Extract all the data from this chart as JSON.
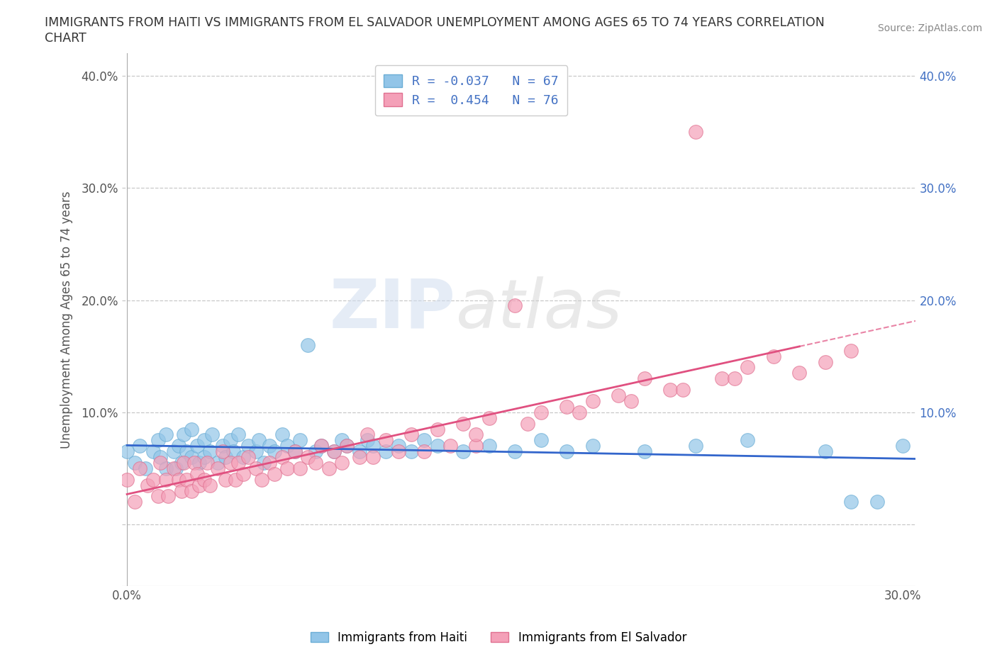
{
  "title_line1": "IMMIGRANTS FROM HAITI VS IMMIGRANTS FROM EL SALVADOR UNEMPLOYMENT AMONG AGES 65 TO 74 YEARS CORRELATION",
  "title_line2": "CHART",
  "source": "Source: ZipAtlas.com",
  "ylabel": "Unemployment Among Ages 65 to 74 years",
  "xlim": [
    -0.002,
    0.305
  ],
  "ylim": [
    -0.055,
    0.42
  ],
  "haiti_color": "#92C5E8",
  "haiti_edge_color": "#6AADD5",
  "el_salvador_color": "#F4A0B8",
  "el_salvador_edge_color": "#E07090",
  "haiti_R": -0.037,
  "haiti_N": 67,
  "el_salvador_R": 0.454,
  "el_salvador_N": 76,
  "haiti_trend_color": "#3366CC",
  "el_salvador_trend_color": "#E05080",
  "watermark_zip": "ZIP",
  "watermark_atlas": "atlas",
  "background_color": "#ffffff",
  "grid_color": "#c8c8c8",
  "legend_text_color": "#4472C4",
  "right_axis_color": "#4472C4",
  "haiti_x": [
    0.0,
    0.003,
    0.005,
    0.007,
    0.01,
    0.012,
    0.013,
    0.015,
    0.015,
    0.018,
    0.019,
    0.02,
    0.021,
    0.022,
    0.023,
    0.025,
    0.025,
    0.027,
    0.028,
    0.03,
    0.03,
    0.032,
    0.033,
    0.035,
    0.037,
    0.038,
    0.04,
    0.041,
    0.043,
    0.045,
    0.047,
    0.05,
    0.051,
    0.053,
    0.055,
    0.057,
    0.06,
    0.062,
    0.065,
    0.067,
    0.07,
    0.073,
    0.075,
    0.08,
    0.083,
    0.085,
    0.09,
    0.093,
    0.095,
    0.1,
    0.105,
    0.11,
    0.115,
    0.12,
    0.13,
    0.14,
    0.15,
    0.16,
    0.17,
    0.18,
    0.2,
    0.22,
    0.24,
    0.27,
    0.28,
    0.29,
    0.3
  ],
  "haiti_y": [
    0.065,
    0.055,
    0.07,
    0.05,
    0.065,
    0.075,
    0.06,
    0.08,
    0.05,
    0.065,
    0.05,
    0.07,
    0.055,
    0.08,
    0.065,
    0.06,
    0.085,
    0.07,
    0.055,
    0.075,
    0.06,
    0.065,
    0.08,
    0.055,
    0.07,
    0.06,
    0.075,
    0.065,
    0.08,
    0.06,
    0.07,
    0.065,
    0.075,
    0.055,
    0.07,
    0.065,
    0.08,
    0.07,
    0.065,
    0.075,
    0.16,
    0.065,
    0.07,
    0.065,
    0.075,
    0.07,
    0.065,
    0.075,
    0.07,
    0.065,
    0.07,
    0.065,
    0.075,
    0.07,
    0.065,
    0.07,
    0.065,
    0.075,
    0.065,
    0.07,
    0.065,
    0.07,
    0.075,
    0.065,
    0.02,
    0.02,
    0.07
  ],
  "el_salvador_x": [
    0.0,
    0.003,
    0.005,
    0.008,
    0.01,
    0.012,
    0.013,
    0.015,
    0.016,
    0.018,
    0.02,
    0.021,
    0.022,
    0.023,
    0.025,
    0.026,
    0.027,
    0.028,
    0.03,
    0.031,
    0.032,
    0.035,
    0.037,
    0.038,
    0.04,
    0.042,
    0.043,
    0.045,
    0.047,
    0.05,
    0.052,
    0.055,
    0.057,
    0.06,
    0.062,
    0.065,
    0.067,
    0.07,
    0.073,
    0.075,
    0.078,
    0.08,
    0.083,
    0.085,
    0.09,
    0.093,
    0.095,
    0.1,
    0.105,
    0.11,
    0.115,
    0.12,
    0.125,
    0.13,
    0.135,
    0.14,
    0.15,
    0.16,
    0.17,
    0.18,
    0.19,
    0.2,
    0.21,
    0.22,
    0.23,
    0.24,
    0.25,
    0.26,
    0.27,
    0.28,
    0.135,
    0.155,
    0.175,
    0.195,
    0.215,
    0.235
  ],
  "el_salvador_y": [
    0.04,
    0.02,
    0.05,
    0.035,
    0.04,
    0.025,
    0.055,
    0.04,
    0.025,
    0.05,
    0.04,
    0.03,
    0.055,
    0.04,
    0.03,
    0.055,
    0.045,
    0.035,
    0.04,
    0.055,
    0.035,
    0.05,
    0.065,
    0.04,
    0.055,
    0.04,
    0.055,
    0.045,
    0.06,
    0.05,
    0.04,
    0.055,
    0.045,
    0.06,
    0.05,
    0.065,
    0.05,
    0.06,
    0.055,
    0.07,
    0.05,
    0.065,
    0.055,
    0.07,
    0.06,
    0.08,
    0.06,
    0.075,
    0.065,
    0.08,
    0.065,
    0.085,
    0.07,
    0.09,
    0.07,
    0.095,
    0.195,
    0.1,
    0.105,
    0.11,
    0.115,
    0.13,
    0.12,
    0.35,
    0.13,
    0.14,
    0.15,
    0.135,
    0.145,
    0.155,
    0.08,
    0.09,
    0.1,
    0.11,
    0.12,
    0.13
  ]
}
